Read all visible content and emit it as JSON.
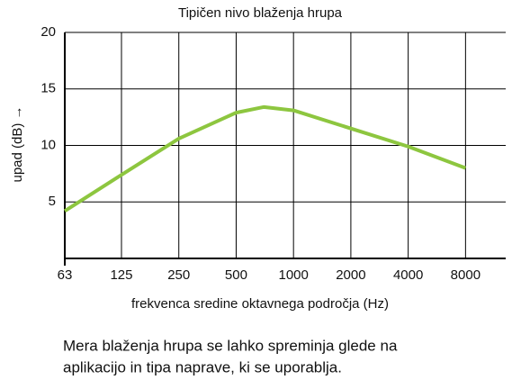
{
  "chart_data": {
    "type": "line",
    "title": "Tipičen nivo blaženja hrupa",
    "xlabel": "frekvenca sredine oktavnega področja (Hz)",
    "ylabel": "upad (dB) →",
    "x": [
      63,
      125,
      250,
      500,
      700,
      1000,
      2000,
      4000,
      8000
    ],
    "series": [
      {
        "name": "upad",
        "color": "#8dc63f",
        "values": [
          4.2,
          7.4,
          10.6,
          12.9,
          13.4,
          13.1,
          11.5,
          9.9,
          8.0
        ]
      }
    ],
    "xscale": "log",
    "xlim": [
      63,
      13000
    ],
    "xticks": [
      63,
      125,
      250,
      500,
      1000,
      2000,
      4000,
      8000
    ],
    "ylim": [
      0,
      20
    ],
    "yticks": [
      5,
      10,
      15,
      20
    ],
    "grid": true,
    "caption": [
      "Mera blaženja hrupa se lahko spreminja glede na",
      "aplikacijo in tipa naprave, ki se uporablja."
    ]
  }
}
